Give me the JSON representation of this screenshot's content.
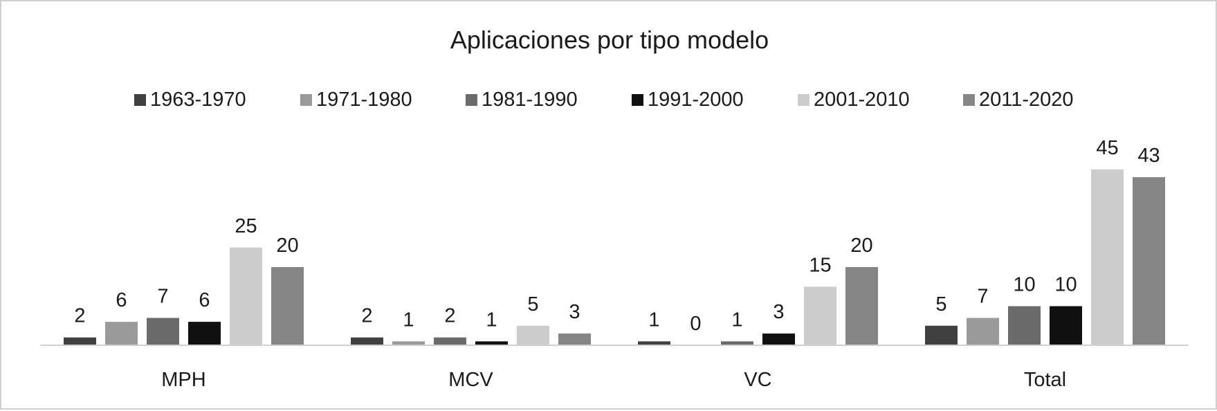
{
  "chart_data": {
    "type": "bar",
    "title": "Aplicaciones por tipo modelo",
    "xlabel": "",
    "ylabel": "",
    "categories": [
      "MPH",
      "MCV",
      "VC",
      "Total"
    ],
    "series": [
      {
        "name": "1963-1970",
        "color": "#404040",
        "values": [
          2,
          2,
          1,
          5
        ]
      },
      {
        "name": "1971-1980",
        "color": "#9a9a9a",
        "values": [
          6,
          1,
          0,
          7
        ]
      },
      {
        "name": "1981-1990",
        "color": "#6b6b6b",
        "values": [
          7,
          2,
          1,
          10
        ]
      },
      {
        "name": "1991-2000",
        "color": "#111111",
        "values": [
          6,
          1,
          3,
          10
        ]
      },
      {
        "name": "2001-2010",
        "color": "#cccccc",
        "values": [
          25,
          5,
          15,
          45
        ]
      },
      {
        "name": "2011-2020",
        "color": "#858585",
        "values": [
          20,
          3,
          20,
          43
        ]
      }
    ],
    "ylim": [
      0,
      50
    ],
    "grid": false,
    "legend_position": "top",
    "data_labels": true
  }
}
